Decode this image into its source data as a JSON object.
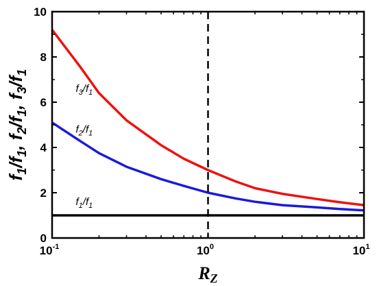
{
  "chart_data": {
    "type": "line",
    "xscale": "log",
    "xlim": [
      0.1,
      10
    ],
    "ylim": [
      0,
      10
    ],
    "xlabel": "R",
    "xlabel_sub": "Z",
    "ylabel": "f1/f1, f2/f1, f3/f1",
    "xticks": [
      {
        "value": 0.1,
        "base": "10",
        "exp": "-1"
      },
      {
        "value": 1,
        "base": "10",
        "exp": "0"
      },
      {
        "value": 10,
        "base": "10",
        "exp": "1"
      }
    ],
    "yticks": [
      0,
      2,
      4,
      6,
      8,
      10
    ],
    "vline": {
      "x": 1,
      "style": "dashed",
      "color": "#000000"
    },
    "series": [
      {
        "key": "f3",
        "color": "#ee1111",
        "x": [
          0.1,
          0.15,
          0.2,
          0.3,
          0.5,
          0.7,
          1,
          1.5,
          2,
          3,
          5,
          7,
          10
        ],
        "y": [
          9.2,
          7.6,
          6.4,
          5.2,
          4.1,
          3.5,
          3.0,
          2.5,
          2.2,
          1.95,
          1.72,
          1.58,
          1.45
        ]
      },
      {
        "key": "f2",
        "color": "#1a1adc",
        "x": [
          0.1,
          0.15,
          0.2,
          0.3,
          0.5,
          0.7,
          1,
          1.5,
          2,
          3,
          5,
          7,
          10
        ],
        "y": [
          5.1,
          4.3,
          3.75,
          3.15,
          2.6,
          2.3,
          2.0,
          1.75,
          1.6,
          1.45,
          1.35,
          1.28,
          1.22
        ]
      },
      {
        "key": "f1",
        "color": "#000000",
        "x": [
          0.1,
          10
        ],
        "y": [
          1.0,
          1.0
        ]
      }
    ],
    "annotations": [
      {
        "num": "f",
        "num_sub": "3",
        "den": "f",
        "den_sub": "1",
        "x": 0.2,
        "y": 6.6
      },
      {
        "num": "f",
        "num_sub": "2",
        "den": "f",
        "den_sub": "1",
        "x": 0.2,
        "y": 4.8
      },
      {
        "num": "f",
        "num_sub": "1",
        "den": "f",
        "den_sub": "1",
        "x": 0.2,
        "y": 1.6
      }
    ]
  }
}
